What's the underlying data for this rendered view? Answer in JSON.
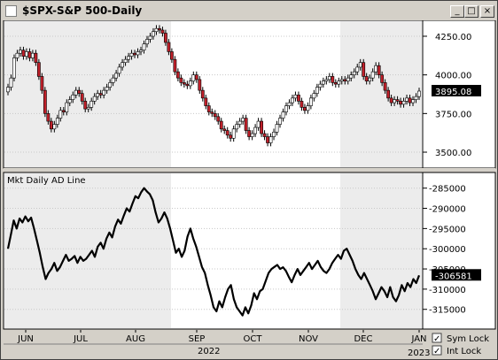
{
  "window": {
    "title": "$SPX-S&P 500-Daily",
    "buttons": {
      "minimize": "_",
      "maximize": "□",
      "close": "×"
    }
  },
  "colors": {
    "up_candle": "#ffffff",
    "down_candle": "#c0202a",
    "candle_outline": "#000000",
    "line": "#000000",
    "plot_bg": "#ffffff",
    "shade_bg": "#ececec",
    "price_tag_bg": "#000000",
    "price_tag_text": "#ffffff"
  },
  "toolbar": {
    "sym_lock_label": "Sym Lock",
    "int_lock_label": "Int Lock",
    "sym_lock_checked": true,
    "int_lock_checked": true
  },
  "chart_data": [
    {
      "type": "candlestick",
      "title": "$SPX-S&P 500-Daily",
      "ylim": [
        3420,
        4330
      ],
      "y_ticks": [
        3500,
        3750,
        4000,
        4250
      ],
      "y_tick_labels": [
        "3500.00",
        "3750.00",
        "4000.00",
        "4250.00"
      ],
      "last_value_label": "3895.08",
      "last_value": 3895.08,
      "closes": [
        3920,
        3980,
        4110,
        4140,
        4160,
        4120,
        4150,
        4110,
        4140,
        4080,
        3990,
        3900,
        3750,
        3700,
        3650,
        3680,
        3720,
        3770,
        3760,
        3820,
        3840,
        3870,
        3900,
        3880,
        3830,
        3780,
        3790,
        3830,
        3860,
        3880,
        3870,
        3900,
        3920,
        3950,
        3980,
        4010,
        4050,
        4080,
        4100,
        4120,
        4140,
        4130,
        4150,
        4160,
        4200,
        4230,
        4250,
        4280,
        4300,
        4290,
        4270,
        4210,
        4150,
        4100,
        4020,
        3980,
        3950,
        3940,
        3930,
        3960,
        4000,
        3970,
        3900,
        3850,
        3800,
        3760,
        3750,
        3730,
        3700,
        3650,
        3640,
        3610,
        3590,
        3650,
        3680,
        3700,
        3720,
        3640,
        3600,
        3620,
        3660,
        3700,
        3620,
        3600,
        3560,
        3600,
        3630,
        3680,
        3720,
        3760,
        3800,
        3820,
        3850,
        3870,
        3830,
        3790,
        3770,
        3800,
        3850,
        3880,
        3920,
        3940,
        3960,
        3970,
        3990,
        3950,
        3940,
        3960,
        3970,
        3960,
        3980,
        4000,
        4020,
        4050,
        4080,
        3990,
        3960,
        3980,
        4020,
        4060,
        4000,
        3950,
        3900,
        3850,
        3820,
        3840,
        3830,
        3810,
        3830,
        3850,
        3820,
        3840,
        3860,
        3895
      ]
    },
    {
      "type": "line",
      "title": "Mkt Daily AD Line",
      "ylim": [
        -319000,
        -282000
      ],
      "y_ticks": [
        -285000,
        -290000,
        -295000,
        -300000,
        -305000,
        -310000,
        -315000
      ],
      "y_tick_labels": [
        "-285000",
        "-290000",
        "-295000",
        "-300000",
        "-305000",
        "-310000",
        "-315000"
      ],
      "last_value_label": "-306581",
      "last_value": -306581,
      "x_labels": [
        "JUN",
        "JUL",
        "AUG",
        "SEP",
        "OCT",
        "NOV",
        "DEC",
        "JAN"
      ],
      "x_year_labels": [
        "2022",
        "2023"
      ],
      "values": [
        -300000,
        -296500,
        -293000,
        -295000,
        -292500,
        -293500,
        -292000,
        -293200,
        -292300,
        -295000,
        -298000,
        -301000,
        -304500,
        -307500,
        -306000,
        -305000,
        -303500,
        -305500,
        -304500,
        -303000,
        -301500,
        -303000,
        -302500,
        -301800,
        -303500,
        -302000,
        -303000,
        -302500,
        -301500,
        -300500,
        -302000,
        -299500,
        -298500,
        -300000,
        -297500,
        -296000,
        -297200,
        -294500,
        -292800,
        -293800,
        -291800,
        -290000,
        -290800,
        -288800,
        -287000,
        -287500,
        -286000,
        -285000,
        -285800,
        -286500,
        -288000,
        -291000,
        -293500,
        -292500,
        -291000,
        -292500,
        -295000,
        -298000,
        -301000,
        -300000,
        -302000,
        -300500,
        -297000,
        -295000,
        -297500,
        -299500,
        -302000,
        -304500,
        -306000,
        -309000,
        -311500,
        -314500,
        -315500,
        -313000,
        -314500,
        -312000,
        -310000,
        -309000,
        -312500,
        -314500,
        -315500,
        -316500,
        -314500,
        -316000,
        -314000,
        -311000,
        -312500,
        -310500,
        -310000,
        -308000,
        -306000,
        -305000,
        -304500,
        -304000,
        -305000,
        -304600,
        -305500,
        -307000,
        -308300,
        -306500,
        -305000,
        -306500,
        -305500,
        -304500,
        -303500,
        -305000,
        -304000,
        -303000,
        -304500,
        -305500,
        -306000,
        -305000,
        -303500,
        -302500,
        -301500,
        -302500,
        -300500,
        -300000,
        -301500,
        -303000,
        -305000,
        -306500,
        -307500,
        -306000,
        -307500,
        -309000,
        -310500,
        -312500,
        -311000,
        -309500,
        -310500,
        -312000,
        -309500,
        -312000,
        -313000,
        -311500,
        -309000,
        -310500,
        -308500,
        -309500,
        -307500,
        -308500,
        -306581
      ]
    }
  ]
}
